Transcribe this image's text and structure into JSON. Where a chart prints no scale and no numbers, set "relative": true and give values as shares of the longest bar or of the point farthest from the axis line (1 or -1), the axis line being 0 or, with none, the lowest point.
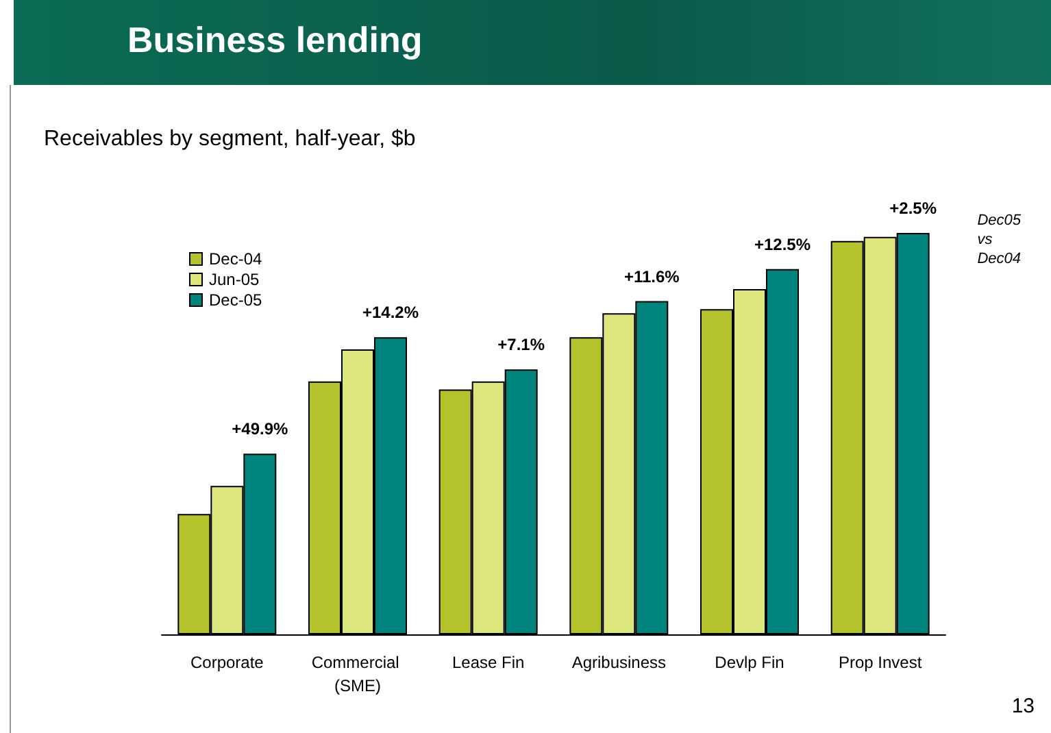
{
  "chart_data": {
    "type": "bar",
    "relative": true,
    "title": "Business lending",
    "subtitle": "Receivables by segment, half-year, $b",
    "categories": [
      "Corporate",
      "Commercial (SME)",
      "Lease Fin",
      "Agribusiness",
      "Devlp Fin",
      "Prop Invest"
    ],
    "series": [
      {
        "name": "Dec-04",
        "color": "#b4c22c",
        "values": [
          0.3,
          0.63,
          0.61,
          0.74,
          0.81,
          0.98
        ]
      },
      {
        "name": "Jun-05",
        "color": "#dde67c",
        "values": [
          0.37,
          0.71,
          0.63,
          0.8,
          0.86,
          0.99
        ]
      },
      {
        "name": "Dec-05",
        "color": "#00857e",
        "values": [
          0.45,
          0.74,
          0.66,
          0.83,
          0.91,
          1
        ]
      }
    ],
    "annotations": [
      "+49.9%",
      "+14.2%",
      "+7.1%",
      "+11.6%",
      "+12.5%",
      "+2.5%",
      "Dec05 vs Dec04",
      "13"
    ],
    "legend": "top left"
  }
}
